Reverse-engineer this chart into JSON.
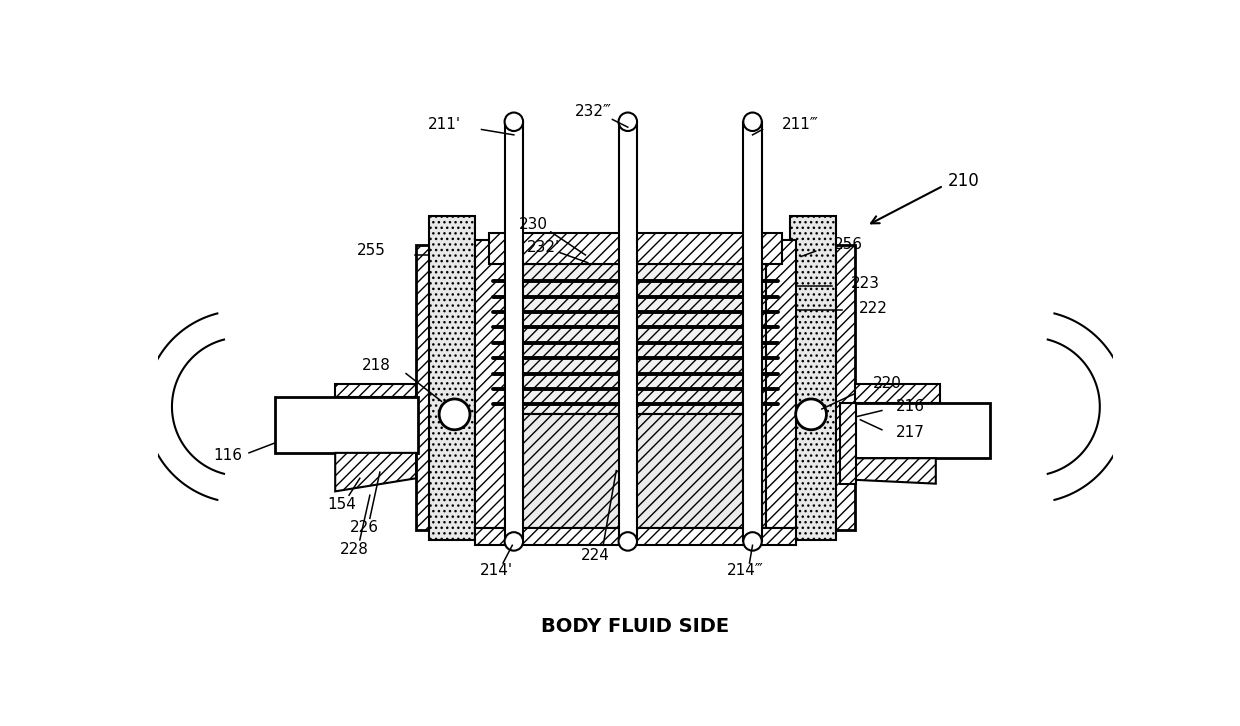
{
  "caption": "BODY FLUID SIDE",
  "bg_color": "#ffffff",
  "fig_width": 12.4,
  "fig_height": 7.26,
  "labels": {
    "211p": "211'",
    "232ppp": "232″′",
    "211ppp": "211″′",
    "210": "210",
    "230": "230",
    "232p": "232'",
    "255": "255",
    "256": "256",
    "223": "223",
    "222": "222",
    "220": "220",
    "218": "218",
    "216": "216",
    "217": "217",
    "116": "116",
    "154": "154",
    "226": "226",
    "228": "228",
    "214p": "214'",
    "224": "224",
    "214ppp": "214″′"
  }
}
